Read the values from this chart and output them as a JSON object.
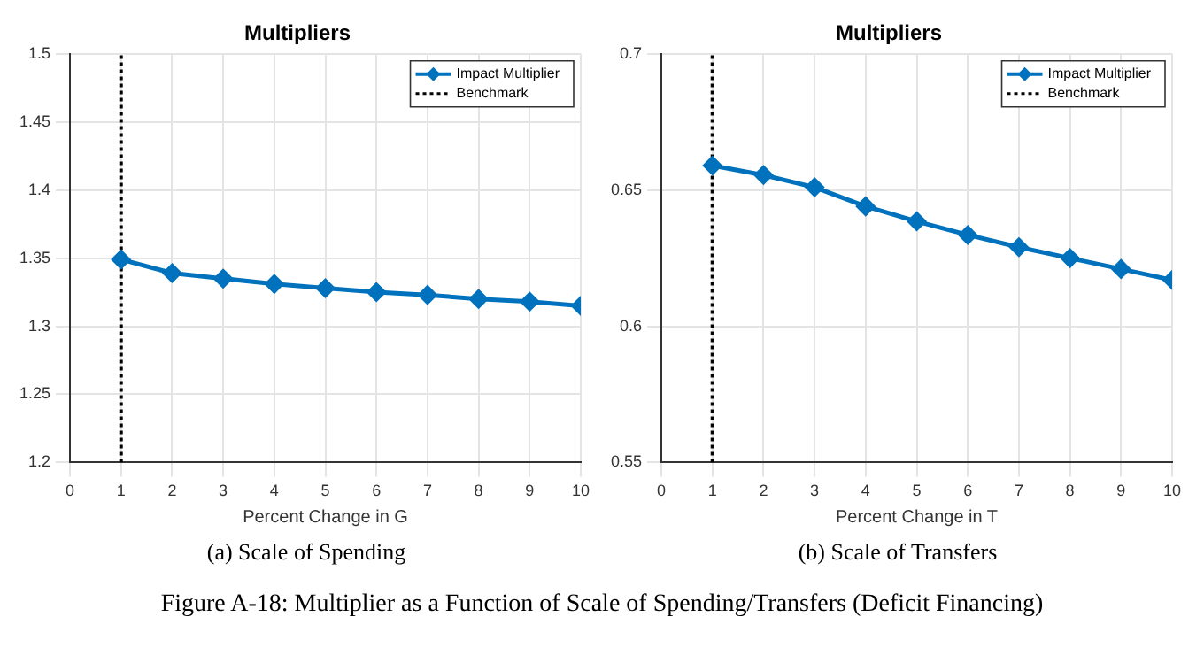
{
  "chart_data": [
    {
      "type": "line",
      "title": "Multipliers",
      "xlabel": "Percent Change in G",
      "x": [
        1,
        2,
        3,
        4,
        5,
        6,
        7,
        8,
        9,
        10
      ],
      "series": [
        {
          "name": "Impact Multiplier",
          "color": "#0072bd",
          "values": [
            1.349,
            1.339,
            1.335,
            1.331,
            1.328,
            1.325,
            1.323,
            1.32,
            1.318,
            1.315
          ]
        }
      ],
      "xlim": [
        0,
        10
      ],
      "xticks": [
        0,
        1,
        2,
        3,
        4,
        5,
        6,
        7,
        8,
        9,
        10
      ],
      "ylim": [
        1.2,
        1.5
      ],
      "yticks": [
        1.2,
        1.25,
        1.3,
        1.35,
        1.4,
        1.45,
        1.5
      ],
      "ref_lines": [
        {
          "axis": "x",
          "value": 1,
          "label": "Benchmark",
          "color": "#000000",
          "line_style": "dotted"
        }
      ],
      "grid": true,
      "legend": "top right",
      "marker": "diamond",
      "line_style": "solid",
      "annotations": [
        "(a) Scale of Spending"
      ]
    },
    {
      "type": "line",
      "title": "Multipliers",
      "xlabel": "Percent Change in T",
      "x": [
        1,
        2,
        3,
        4,
        5,
        6,
        7,
        8,
        9,
        10
      ],
      "series": [
        {
          "name": "Impact Multiplier",
          "color": "#0072bd",
          "values": [
            0.659,
            0.6555,
            0.651,
            0.644,
            0.6385,
            0.6335,
            0.629,
            0.625,
            0.621,
            0.617
          ]
        }
      ],
      "xlim": [
        0,
        10
      ],
      "xticks": [
        0,
        1,
        2,
        3,
        4,
        5,
        6,
        7,
        8,
        9,
        10
      ],
      "ylim": [
        0.55,
        0.7
      ],
      "yticks": [
        0.55,
        0.6,
        0.65,
        0.7
      ],
      "ref_lines": [
        {
          "axis": "x",
          "value": 1,
          "label": "Benchmark",
          "color": "#000000",
          "line_style": "dotted"
        }
      ],
      "grid": true,
      "legend": "top right",
      "marker": "diamond",
      "line_style": "solid",
      "annotations": [
        "(b) Scale of Transfers",
        "Figure A-18: Multiplier as a Function of Scale of Spending/Transfers (Deficit Financing)"
      ]
    }
  ]
}
